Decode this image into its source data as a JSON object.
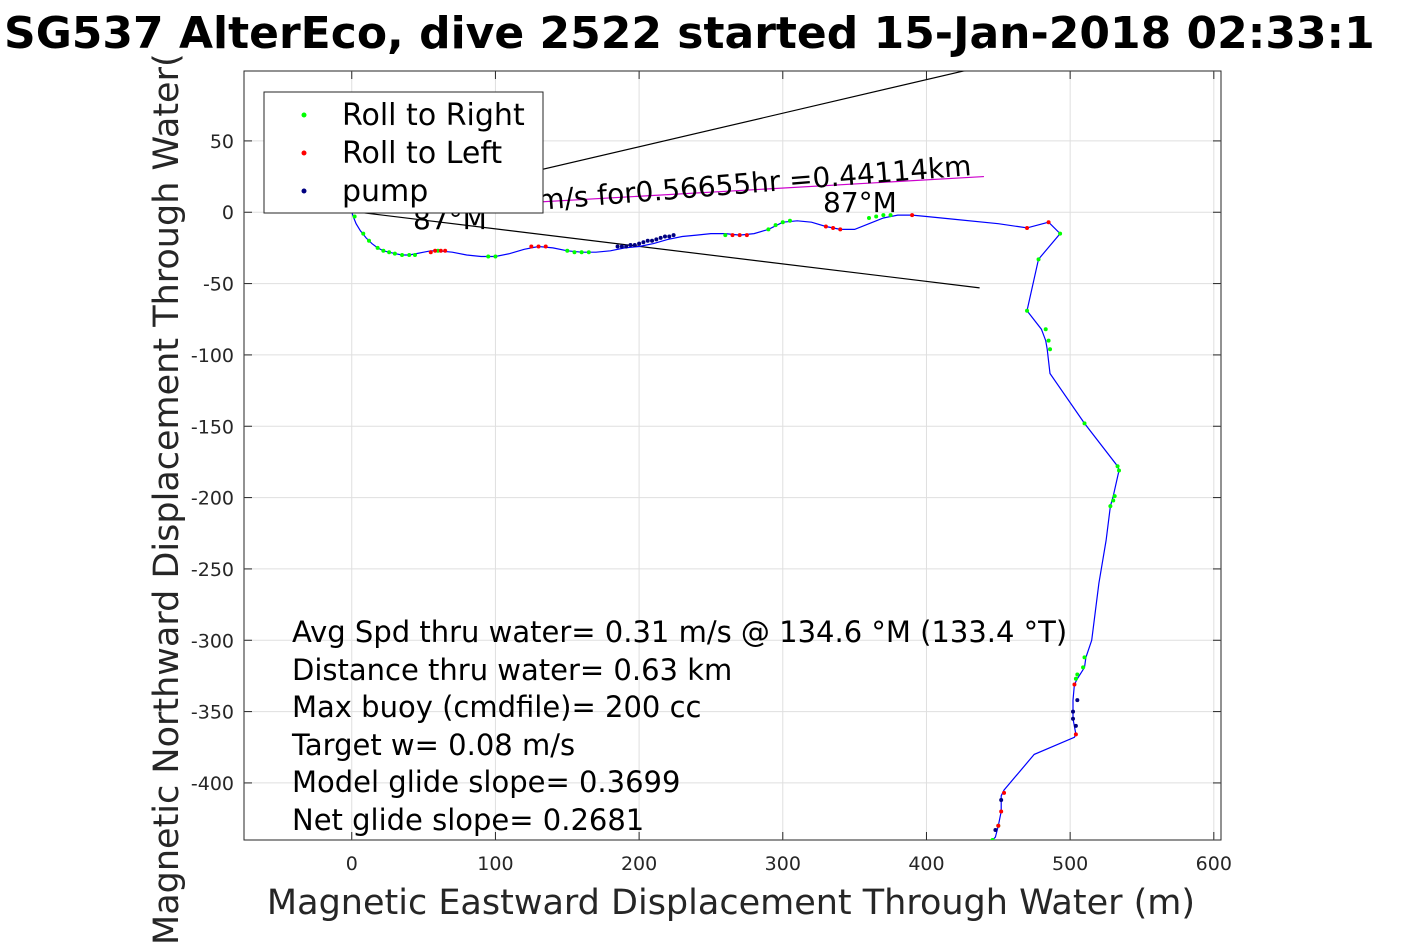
{
  "chart_data": {
    "type": "scatter",
    "title": "SG537 AlterEco, dive 2522 started 15-Jan-2018 02:33:1",
    "xlabel": "Magnetic Eastward Displacement Through Water (m)",
    "ylabel": "Magnetic Northward Displacement Through Water(",
    "xlim": [
      -75,
      605
    ],
    "ylim": [
      -440,
      99
    ],
    "grid": true,
    "legend_position": "top-left",
    "x_ticks": [
      "0",
      "100",
      "200",
      "300",
      "400",
      "500",
      "600"
    ],
    "y_ticks": [
      "50",
      "0",
      "-50",
      "-100",
      "-150",
      "-200",
      "-250",
      "-300",
      "-350",
      "-400"
    ],
    "x_tick_values": [
      0,
      100,
      200,
      300,
      400,
      500,
      600
    ],
    "y_tick_values": [
      50,
      0,
      -50,
      -100,
      -150,
      -200,
      -250,
      -300,
      -350,
      -400
    ],
    "track": {
      "x": [
        0,
        1,
        3,
        6,
        10,
        14,
        18,
        22,
        26,
        30,
        35,
        40,
        45,
        50,
        55,
        60,
        70,
        80,
        90,
        100,
        110,
        120,
        130,
        140,
        150,
        160,
        170,
        180,
        190,
        200,
        210,
        220,
        230,
        240,
        250,
        260,
        270,
        280,
        290,
        300,
        310,
        320,
        330,
        340,
        350,
        360,
        370,
        380,
        390,
        400,
        420,
        450,
        470,
        485,
        493,
        478,
        470,
        480,
        483,
        484,
        486,
        510,
        533,
        534,
        530,
        528,
        525,
        520,
        515,
        511,
        510,
        505,
        503,
        502,
        502,
        504,
        503,
        475,
        454,
        452,
        452,
        450,
        448,
        446
      ],
      "y": [
        0,
        -3,
        -8,
        -13,
        -18,
        -22,
        -25,
        -27,
        -28,
        -29,
        -30,
        -30,
        -29,
        -28,
        -27,
        -27,
        -28,
        -30,
        -31,
        -31,
        -29,
        -26,
        -24,
        -25,
        -27,
        -28,
        -28,
        -27,
        -25,
        -24,
        -22,
        -19,
        -17,
        -16,
        -15,
        -15,
        -16,
        -15,
        -12,
        -7,
        -6,
        -7,
        -10,
        -12,
        -12,
        -8,
        -4,
        -2,
        -2,
        -3,
        -5,
        -8,
        -11,
        -7,
        -15,
        -33,
        -69,
        -82,
        -90,
        -96,
        -113,
        -148,
        -178,
        -181,
        -199,
        -206,
        -230,
        -260,
        -300,
        -312,
        -319,
        -327,
        -331,
        -342,
        -355,
        -366,
        -368,
        -380,
        -405,
        -409,
        -420,
        -430,
        -438,
        -440
      ]
    },
    "series": [
      {
        "name": "Roll to Right",
        "color": "#00ff00",
        "x": [
          2,
          8,
          12,
          18,
          22,
          26,
          30,
          35,
          40,
          44,
          60,
          95,
          100,
          150,
          155,
          160,
          165,
          260,
          290,
          295,
          300,
          305,
          360,
          365,
          370,
          375,
          493,
          478,
          470,
          483,
          485,
          486,
          510,
          533,
          534,
          531,
          530,
          528,
          510,
          509,
          505,
          504,
          446,
          450
        ],
        "y": [
          -3,
          -15,
          -20,
          -25,
          -27,
          -28,
          -29,
          -30,
          -30,
          -30,
          -27,
          -31,
          -31,
          -27,
          -28,
          -28,
          -28,
          -16,
          -12,
          -9,
          -7,
          -6,
          -4,
          -3,
          -2,
          -2,
          -15,
          -33,
          -69,
          -82,
          -90,
          -96,
          -148,
          -178,
          -181,
          -199,
          -202,
          -206,
          -312,
          -319,
          -324,
          -327,
          -440,
          -430
        ]
      },
      {
        "name": "Roll to Left",
        "color": "#ff0000",
        "x": [
          55,
          58,
          62,
          65,
          125,
          130,
          135,
          265,
          270,
          275,
          330,
          335,
          340,
          390,
          470,
          485,
          503,
          504,
          452,
          454,
          450
        ],
        "y": [
          -28,
          -27,
          -27,
          -27,
          -24,
          -24,
          -24,
          -16,
          -16,
          -16,
          -10,
          -11,
          -12,
          -2,
          -11,
          -7,
          -331,
          -366,
          -420,
          -407,
          -430
        ]
      },
      {
        "name": "pump",
        "color": "#000080",
        "x": [
          185,
          188,
          191,
          194,
          197,
          200,
          203,
          206,
          209,
          212,
          215,
          218,
          221,
          224,
          502,
          502,
          504,
          505,
          448,
          452
        ],
        "y": [
          -24,
          -24,
          -24,
          -23,
          -23,
          -22,
          -21,
          -20,
          -20,
          -19,
          -18,
          -17,
          -17,
          -16,
          -350,
          -355,
          -360,
          -342,
          -433,
          -412
        ]
      }
    ],
    "annotation_lines": [
      {
        "name": "current-vector-line",
        "x1": 5,
        "y1": 0,
        "x2": 440,
        "y2": 25
      },
      {
        "name": "heading-line-upper",
        "x1": 5,
        "y1": 0,
        "x2": 430,
        "y2": 100
      },
      {
        "name": "heading-line-lower",
        "x1": 5,
        "y1": 0,
        "x2": 437,
        "y2": -53
      }
    ],
    "annotations": {
      "current_text": "m/s for0.56655hr =0.44114km",
      "heading_label_1": "87°M",
      "heading_label_2": "87°M"
    },
    "stats_lines": [
      "Avg Spd thru water=  0.31 m/s @ 134.6 °M (133.4 °T)",
      "Distance thru water=  0.63 km",
      "Max buoy (cmdfile)= 200 cc",
      "Target w= 0.08 m/s",
      "Model glide slope= 0.3699",
      "Net glide slope= 0.2681"
    ]
  }
}
